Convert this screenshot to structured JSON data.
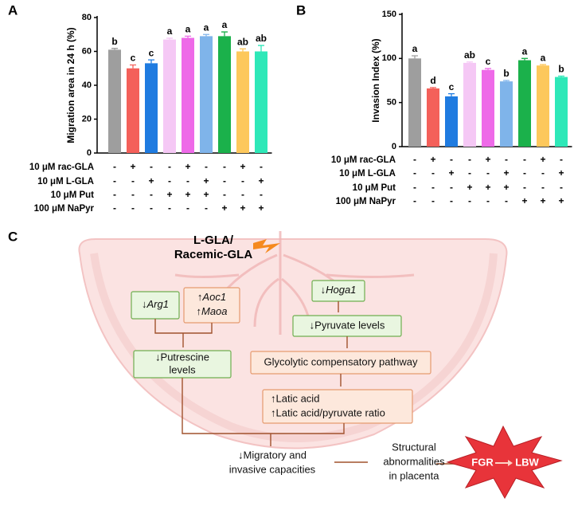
{
  "chart_data": [
    {
      "type": "bar",
      "panel": "A",
      "ylabel": "Migration area in 24 h (%)",
      "categories": [
        null,
        null,
        null,
        null,
        null,
        null,
        null,
        null,
        null
      ],
      "values": [
        61,
        50,
        53,
        67,
        68,
        69,
        69,
        60,
        60
      ],
      "errors": [
        0.8,
        2,
        2,
        0.8,
        1,
        1,
        2.5,
        1.5,
        3.5
      ],
      "colors": [
        "#9e9e9e",
        "#f4605a",
        "#1f7be0",
        "#f5c8f5",
        "#ee6ae8",
        "#7fb4ea",
        "#1bb14b",
        "#fdc85c",
        "#2ee8b8"
      ],
      "annotations": [
        "b",
        "c",
        "c",
        "a",
        "a",
        "a",
        "a",
        "ab",
        "ab"
      ],
      "ylim": [
        0,
        80
      ],
      "yticks": [
        0,
        20,
        40,
        60,
        80
      ],
      "treatments": [
        {
          "label": "10 μM rac-GLA",
          "signs": [
            "-",
            "+",
            "-",
            "-",
            "+",
            "-",
            "-",
            "+",
            "-"
          ]
        },
        {
          "label": "10 μM L-GLA",
          "signs": [
            "-",
            "-",
            "+",
            "-",
            "-",
            "+",
            "-",
            "-",
            "+"
          ]
        },
        {
          "label": "10 μM Put",
          "signs": [
            "-",
            "-",
            "-",
            "+",
            "+",
            "+",
            "-",
            "-",
            "-"
          ]
        },
        {
          "label": "100 μM NaPyr",
          "signs": [
            "-",
            "-",
            "-",
            "-",
            "-",
            "-",
            "+",
            "+",
            "+"
          ]
        }
      ]
    },
    {
      "type": "bar",
      "panel": "B",
      "ylabel": "Invasion Index (%)",
      "categories": [
        null,
        null,
        null,
        null,
        null,
        null,
        null,
        null,
        null
      ],
      "values": [
        100,
        66,
        57,
        95,
        87,
        74,
        98,
        92,
        79
      ],
      "errors": [
        3,
        1,
        3,
        1,
        1.5,
        1,
        2,
        1,
        1
      ],
      "colors": [
        "#9e9e9e",
        "#f4605a",
        "#1f7be0",
        "#f5c8f5",
        "#ee6ae8",
        "#7fb4ea",
        "#1bb14b",
        "#fdc85c",
        "#2ee8b8"
      ],
      "annotations": [
        "a",
        "d",
        "c",
        "ab",
        "c",
        "b",
        "a",
        "a",
        "b"
      ],
      "ylim": [
        0,
        150
      ],
      "yticks": [
        0,
        50,
        100,
        150
      ],
      "treatments": [
        {
          "label": "10 μM rac-GLA",
          "signs": [
            "-",
            "+",
            "-",
            "-",
            "+",
            "-",
            "-",
            "+",
            "-"
          ]
        },
        {
          "label": "10 μM L-GLA",
          "signs": [
            "-",
            "-",
            "+",
            "-",
            "-",
            "+",
            "-",
            "-",
            "+"
          ]
        },
        {
          "label": "10 μM Put",
          "signs": [
            "-",
            "-",
            "-",
            "+",
            "+",
            "+",
            "-",
            "-",
            "-"
          ]
        },
        {
          "label": "100 μM NaPyr",
          "signs": [
            "-",
            "-",
            "-",
            "-",
            "-",
            "-",
            "+",
            "+",
            "+"
          ]
        }
      ]
    }
  ],
  "diagram": {
    "panel": "C",
    "drug": [
      "L-GLA/",
      "Racemic-GLA"
    ],
    "arg1": {
      "arrow": "↓",
      "gene": "Arg1"
    },
    "aoc1": {
      "arrow": "↑",
      "gene": "Aoc1"
    },
    "maoa": {
      "arrow": "↑",
      "gene": "Maoa"
    },
    "hoga1": {
      "arrow": "↓",
      "gene": "Hoga1"
    },
    "pyruvate": "↓Pyruvate levels",
    "putrescine": [
      "↓Putrescine",
      "levels"
    ],
    "glycolytic": "Glycolytic compensatory pathway",
    "latic": [
      "↑Latic acid",
      "↑Latic acid/pyruvate ratio"
    ],
    "migratory": [
      "↓Migratory and",
      "invasive capacities"
    ],
    "structural": [
      "Structural",
      "abnormalities",
      "in placenta"
    ],
    "fgr": "FGR",
    "lbw": "LBW"
  }
}
